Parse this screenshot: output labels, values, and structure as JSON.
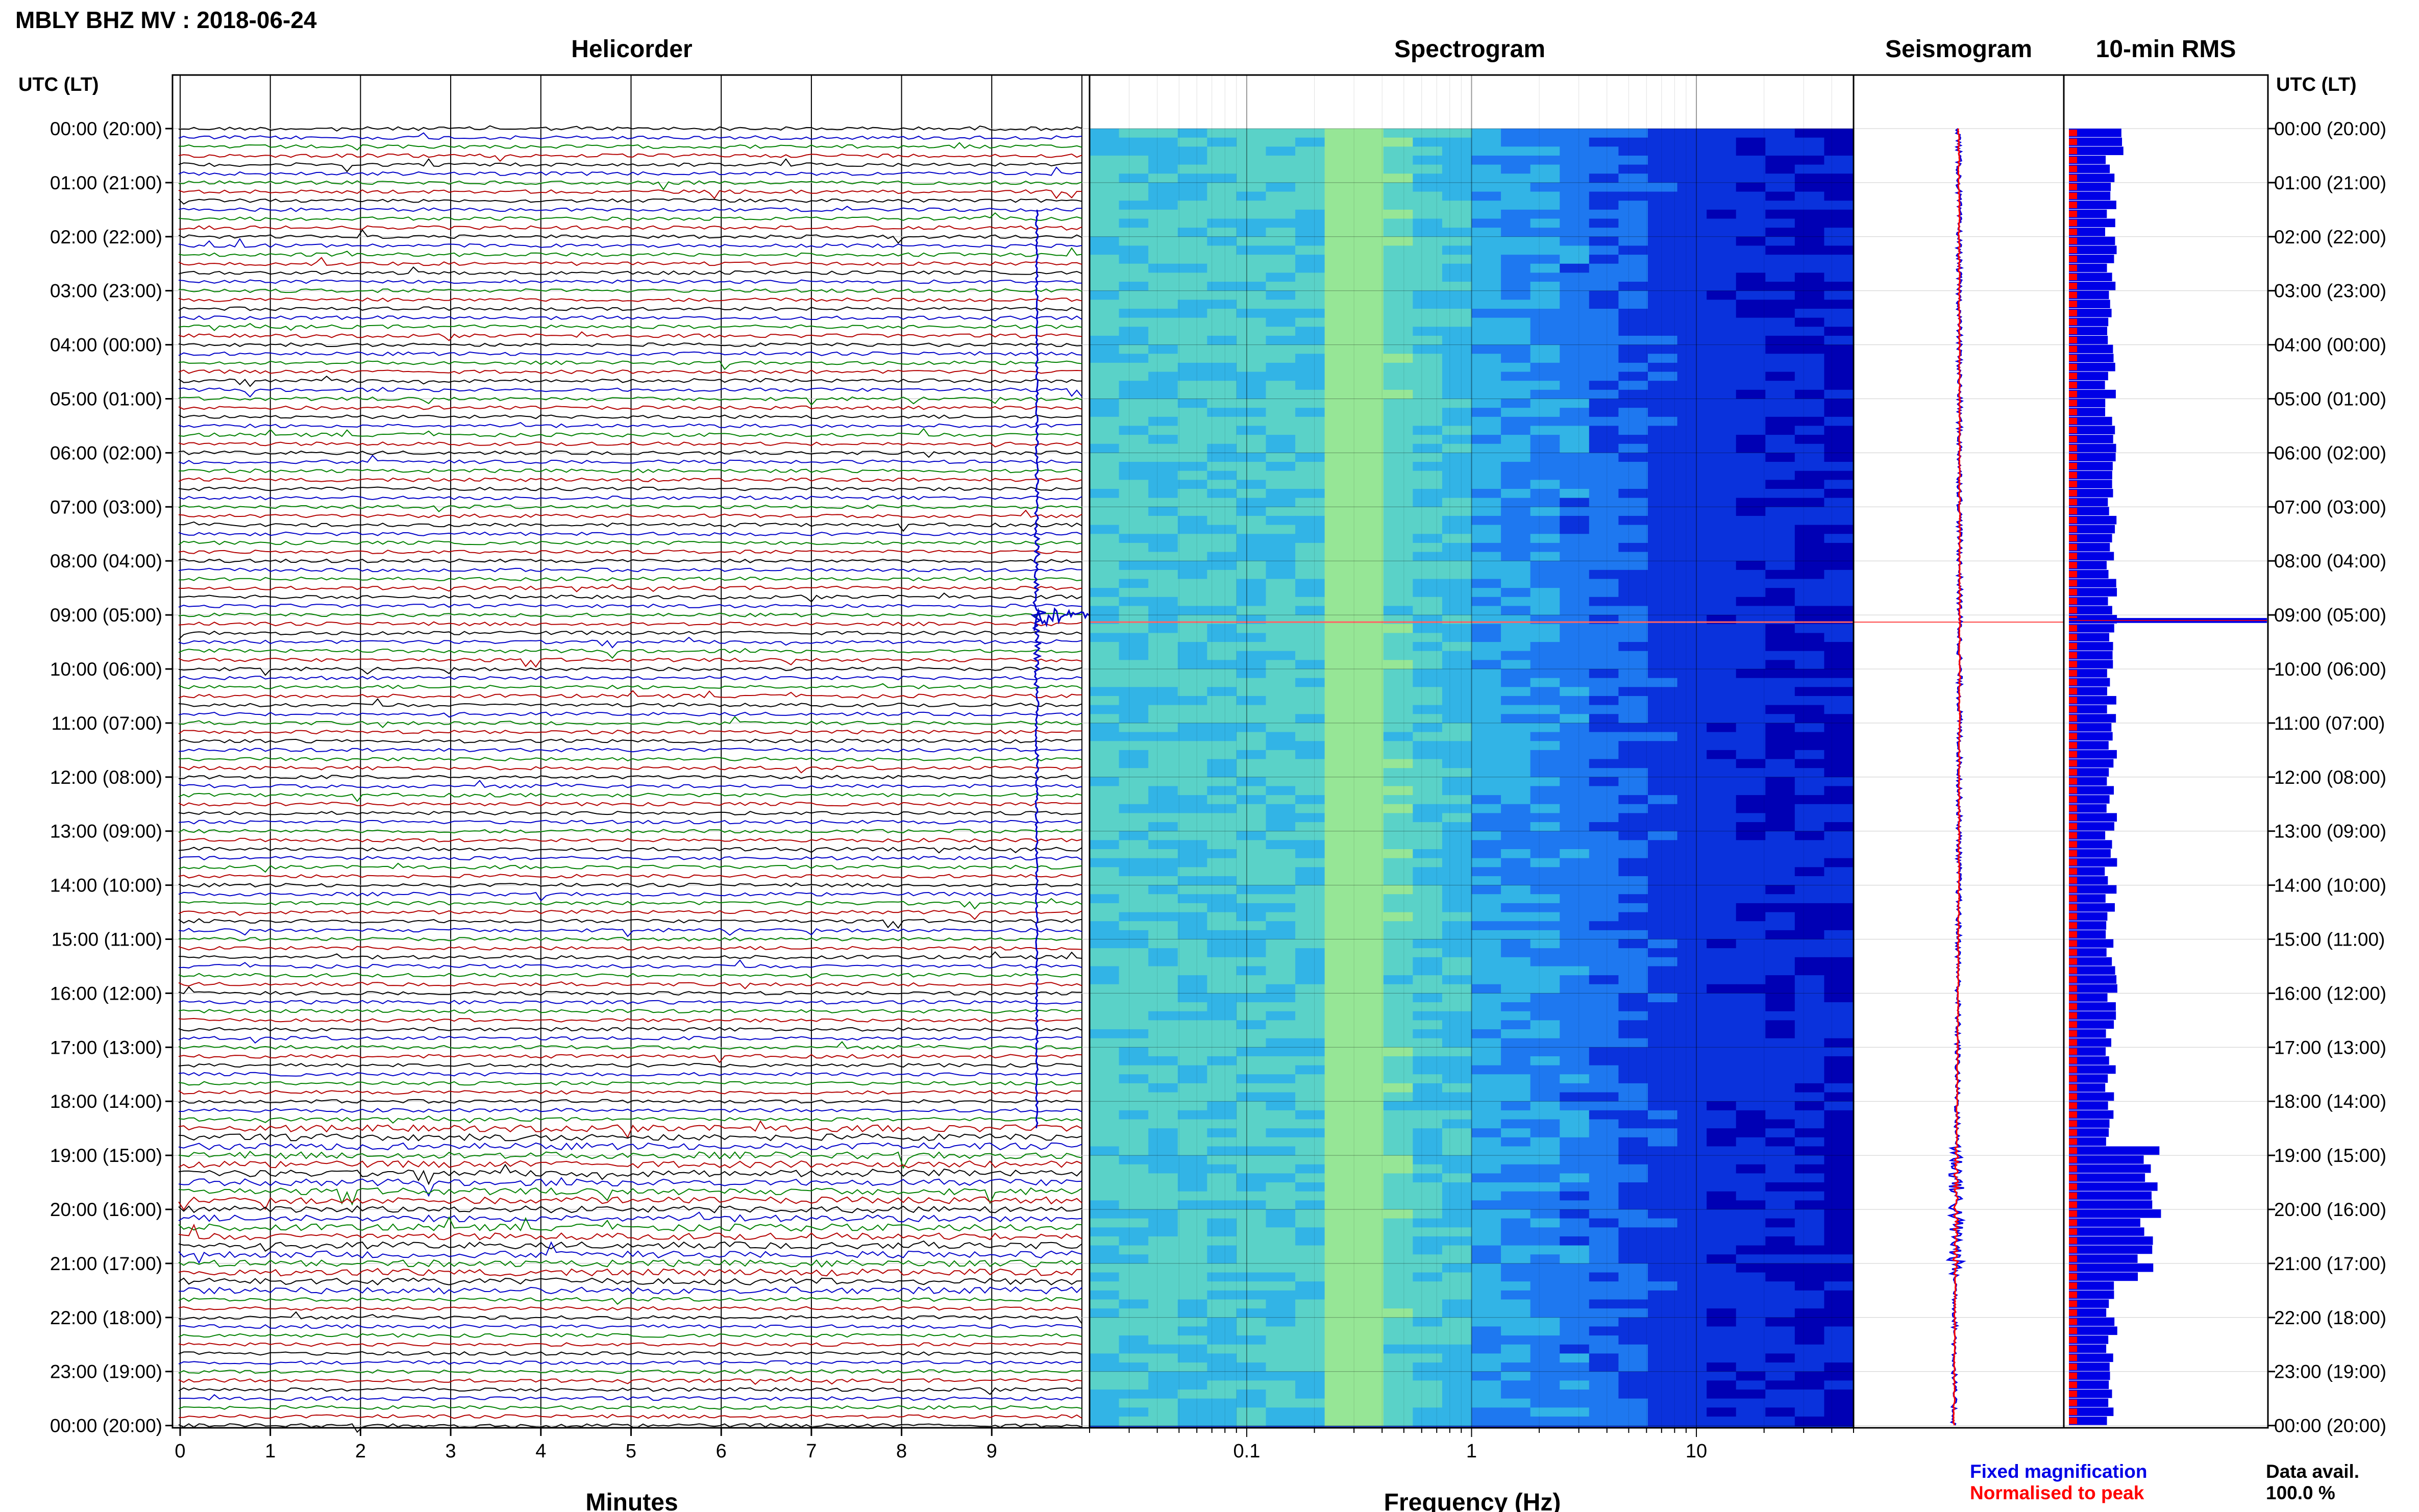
{
  "title": "MBLY BHZ MV : 2018-06-24",
  "time_axis_label": "UTC (LT)",
  "chart_data": [
    {
      "type": "line",
      "panel_title": "Helicorder",
      "xlabel": "Minutes",
      "x_ticks": [
        "0",
        "1",
        "2",
        "3",
        "4",
        "5",
        "6",
        "7",
        "8",
        "9"
      ],
      "xlim": [
        0,
        10
      ],
      "rows_per_hour": 6,
      "trace_colors": [
        "#000000",
        "#0000c8",
        "#008000",
        "#b40000"
      ],
      "event": {
        "hour_row_start": 1.5,
        "hour_row_end": 18.5,
        "peak_hour": 9.0,
        "minute": 9.5
      }
    },
    {
      "type": "heatmap",
      "panel_title": "Spectrogram",
      "xlabel": "Frequency (Hz)",
      "x_scale": "log",
      "xlim": [
        0.02,
        50
      ],
      "x_ticks": [
        "0.1",
        "1",
        "10"
      ],
      "colormap": [
        "#0000b4",
        "#0a32dc",
        "#1e78f0",
        "#32b4e6",
        "#5ad2c8",
        "#96e696",
        "#d2f078"
      ]
    },
    {
      "type": "line",
      "panel_title": "Seismogram",
      "legend": [
        {
          "label": "Fixed magnification",
          "color": "#0000e6"
        },
        {
          "label": "Normalised to peak",
          "color": "#ff0000"
        }
      ]
    },
    {
      "type": "bar",
      "panel_title": "10-min RMS",
      "series_colors": [
        "#0000e6",
        "#ff0000"
      ],
      "data_availability_label": "Data avail.",
      "data_availability": "100.0 %"
    }
  ],
  "time_ticks": [
    "00:00 (20:00)",
    "01:00 (21:00)",
    "02:00 (22:00)",
    "03:00 (23:00)",
    "04:00 (00:00)",
    "05:00 (01:00)",
    "06:00 (02:00)",
    "07:00 (03:00)",
    "08:00 (04:00)",
    "09:00 (05:00)",
    "10:00 (06:00)",
    "11:00 (07:00)",
    "12:00 (08:00)",
    "13:00 (09:00)",
    "14:00 (10:00)",
    "15:00 (11:00)",
    "16:00 (12:00)",
    "17:00 (13:00)",
    "18:00 (14:00)",
    "19:00 (15:00)",
    "20:00 (16:00)",
    "21:00 (17:00)",
    "22:00 (18:00)",
    "23:00 (19:00)",
    "00:00 (20:00)"
  ]
}
